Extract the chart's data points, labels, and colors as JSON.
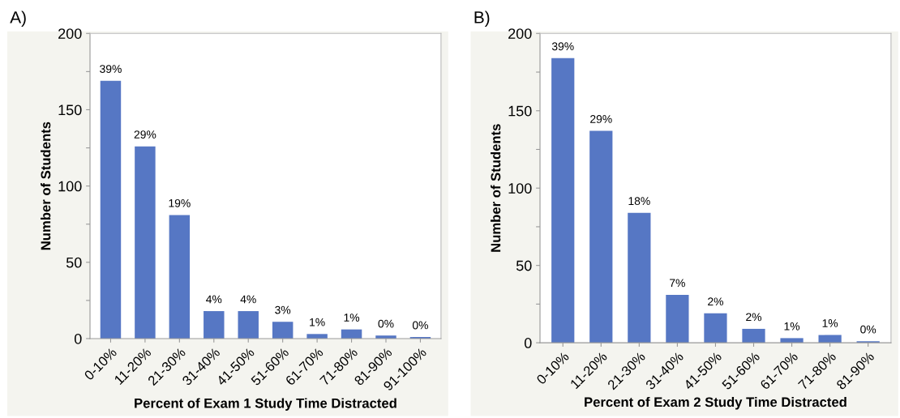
{
  "chart_data": [
    {
      "type": "bar",
      "title": "A)",
      "xlabel": "Percent of Exam 1 Study Time Distracted",
      "ylabel": "Number of Students",
      "categories": [
        "0-10%",
        "11-20%",
        "21-30%",
        "31-40%",
        "41-50%",
        "51-60%",
        "61-70%",
        "71-80%",
        "81-90%",
        "91-100%"
      ],
      "values": [
        169,
        126,
        81,
        18,
        18,
        11,
        3,
        6,
        2,
        1
      ],
      "annotations": [
        {
          "text": "39%",
          "x": "0-10%",
          "y": 169
        },
        {
          "text": "29%",
          "x": "11-20%",
          "y": 126
        },
        {
          "text": "19%",
          "x": "21-30%",
          "y": 81
        },
        {
          "text": "4%",
          "x": "31-40%",
          "y": 18
        },
        {
          "text": "4%",
          "x": "41-50%",
          "y": 18
        },
        {
          "text": "3%",
          "x": "51-60%",
          "y": 11
        },
        {
          "text": "1%",
          "x": "61-70%",
          "y": 3
        },
        {
          "text": "1%",
          "x": "71-80%",
          "y": 6
        },
        {
          "text": "0%",
          "x": "81-90%",
          "y": 2
        },
        {
          "text": "0%",
          "x": "91-100%",
          "y": 1
        }
      ],
      "color": "#5677c4",
      "ylim": [
        0,
        200
      ],
      "yticks": [
        0,
        {
          "value": 25,
          "label": null
        },
        50,
        {
          "value": 75,
          "label": null
        },
        100,
        {
          "value": 125,
          "label": null
        },
        150,
        {
          "value": 175,
          "label": null
        },
        200
      ],
      "grid": false
    },
    {
      "type": "bar",
      "title": "B)",
      "xlabel": "Percent of Exam 2 Study Time Distracted",
      "ylabel": "Number of Students",
      "categories": [
        "0-10%",
        "11-20%",
        "21-30%",
        "31-40%",
        "41-50%",
        "51-60%",
        "61-70%",
        "71-80%",
        "81-90%"
      ],
      "values": [
        184,
        137,
        84,
        31,
        19,
        9,
        3,
        5,
        1
      ],
      "annotations": [
        {
          "text": "39%",
          "x": "0-10%",
          "y": 184
        },
        {
          "text": "29%",
          "x": "11-20%",
          "y": 137
        },
        {
          "text": "18%",
          "x": "21-30%",
          "y": 84
        },
        {
          "text": "7%",
          "x": "31-40%",
          "y": 31
        },
        {
          "text": "2%",
          "x": "41-50%",
          "y": 19
        },
        {
          "text": "2%",
          "x": "51-60%",
          "y": 9
        },
        {
          "text": "1%",
          "x": "61-70%",
          "y": 3
        },
        {
          "text": "1%",
          "x": "71-80%",
          "y": 5
        },
        {
          "text": "0%",
          "x": "81-90%",
          "y": 1
        }
      ],
      "color": "#5677c4",
      "ylim": [
        0,
        200
      ],
      "yticks": [
        0,
        {
          "value": 25,
          "label": null
        },
        50,
        {
          "value": 75,
          "label": null
        },
        100,
        {
          "value": 125,
          "label": null
        },
        150,
        {
          "value": 175,
          "label": null
        },
        200
      ],
      "grid": false
    }
  ]
}
